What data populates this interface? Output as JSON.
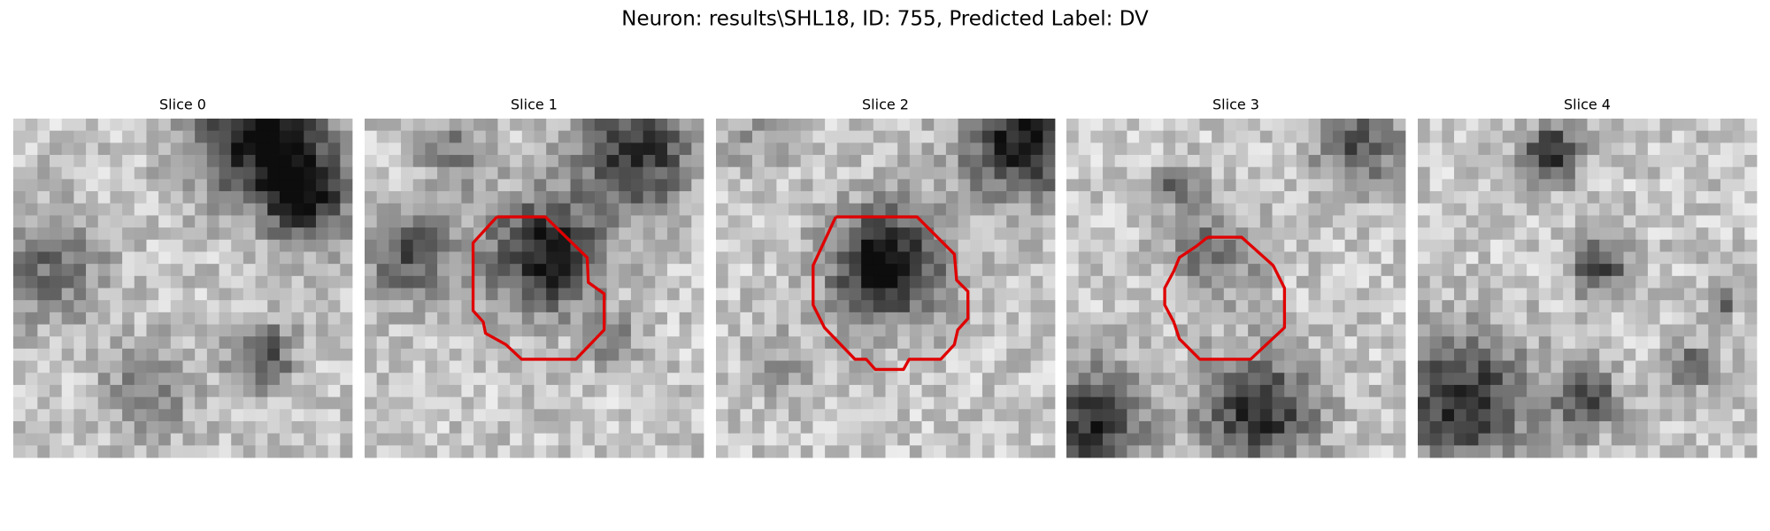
{
  "title": "Neuron: results\\SHL18, ID: 755, Predicted Label: DV",
  "panels": [
    {
      "title": "Slice 0"
    },
    {
      "title": "Slice 1"
    },
    {
      "title": "Slice 2"
    },
    {
      "title": "Slice 3"
    },
    {
      "title": "Slice 4"
    }
  ]
}
